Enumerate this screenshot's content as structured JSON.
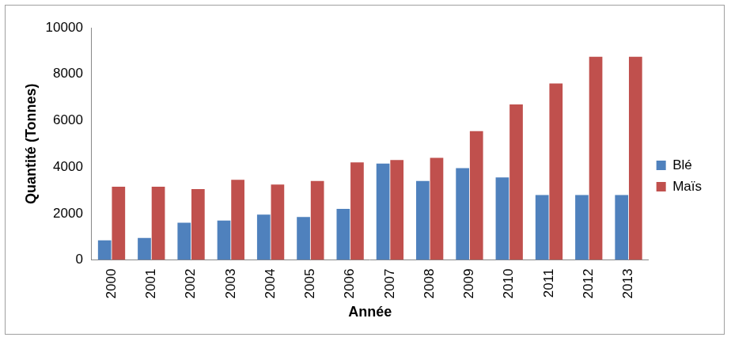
{
  "chart_data": {
    "type": "bar",
    "x_label": "Année",
    "y_label": "Quantité (Tonnes)",
    "categories": [
      "2000",
      "2001",
      "2002",
      "2003",
      "2004",
      "2005",
      "2006",
      "2007",
      "2008",
      "2009",
      "2010",
      "2011",
      "2012",
      "2013"
    ],
    "series": [
      {
        "name": "Blé",
        "color": "#4f81bd",
        "values": [
          850,
          950,
          1600,
          1700,
          1950,
          1850,
          2200,
          4150,
          3400,
          3950,
          3550,
          2800,
          2800,
          2800
        ]
      },
      {
        "name": "Maïs",
        "color": "#c0504d",
        "values": [
          3150,
          3150,
          3050,
          3450,
          3250,
          3400,
          4200,
          4300,
          4400,
          5550,
          6700,
          7600,
          8750,
          8750
        ]
      }
    ],
    "ylim": [
      0,
      10000
    ],
    "yticks": [
      0,
      2000,
      4000,
      6000,
      8000,
      10000
    ],
    "grid": false,
    "legend": "right"
  }
}
